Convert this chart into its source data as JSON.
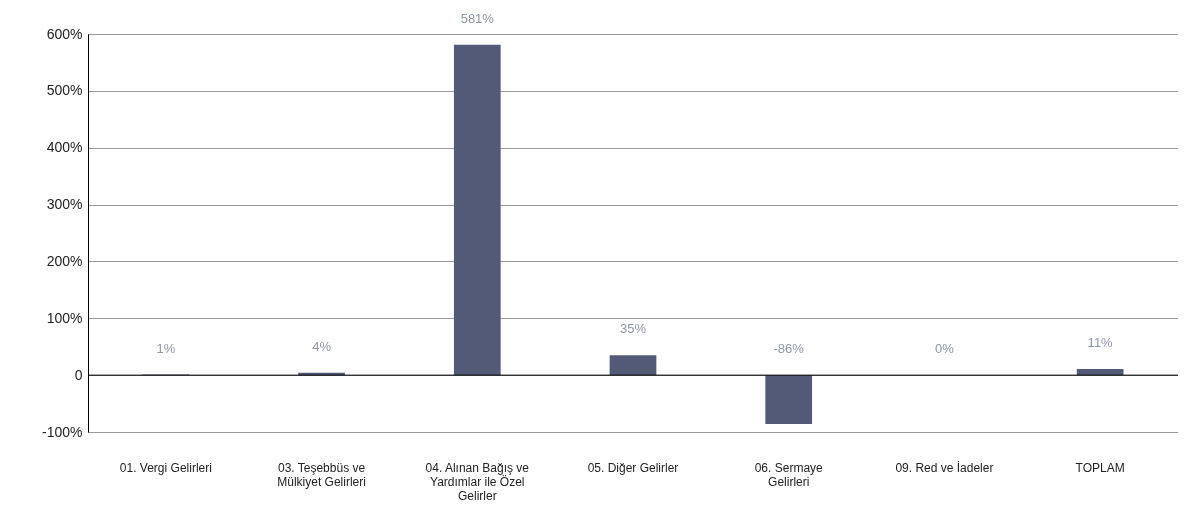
{
  "chart_data": {
    "type": "bar",
    "categories": [
      "01. Vergi Gelirleri",
      "03. Teşebbüs ve Mülkiyet Gelirleri",
      "04. Alınan Bağış ve Yardımlar ile Özel Gelirler",
      "05. Diğer Gelirler",
      "06. Sermaye Gelirleri",
      "09. Red ve İadeler",
      "TOPLAM"
    ],
    "values": [
      1,
      4,
      581,
      35,
      -86,
      0,
      11
    ],
    "value_labels": [
      "1%",
      "4%",
      "581%",
      "35%",
      "-86%",
      "0%",
      "11%"
    ],
    "color": "#525a78",
    "ylim": [
      -100,
      600
    ],
    "yticks": [
      {
        "value": -100,
        "label": "-100%"
      },
      0,
      {
        "value": 100,
        "label": "100%"
      },
      {
        "value": 200,
        "label": "200%"
      },
      {
        "value": 300,
        "label": "300%"
      },
      {
        "value": 400,
        "label": "400%"
      },
      {
        "value": 500,
        "label": "500%"
      },
      {
        "value": 600,
        "label": "600%"
      }
    ],
    "grid": "y",
    "ref_lines": [
      {
        "axis": "y",
        "value": 0,
        "color": "#000000"
      }
    ]
  }
}
